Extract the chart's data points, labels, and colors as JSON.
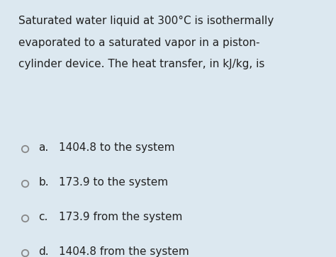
{
  "background_color": "#dce8f0",
  "question_lines": [
    "Saturated water liquid at 300°C is isothermally",
    "evaporated to a saturated vapor in a piston-",
    "cylinder device. The heat transfer, in kJ/kg, is"
  ],
  "options": [
    {
      "label": "a.",
      "text": "1404.8 to the system"
    },
    {
      "label": "b.",
      "text": "173.9 to the system"
    },
    {
      "label": "c.",
      "text": "173.9 from the system"
    },
    {
      "label": "d.",
      "text": "1404.8 from the system"
    }
  ],
  "text_color": "#222222",
  "circle_color": "#888888",
  "question_fontsize": 11.0,
  "option_fontsize": 11.0,
  "fig_width": 4.74,
  "fig_height": 3.63,
  "dpi": 100
}
